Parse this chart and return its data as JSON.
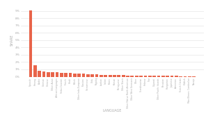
{
  "title": "",
  "xlabel": "LANGUAGE",
  "ylabel": "SHARE",
  "bar_color": "#e8644a",
  "background_color": "#ffffff",
  "grid_color": "#e0e0e0",
  "categories": [
    "Spanish",
    "Hmong",
    "Arabic",
    "German",
    "Chinese",
    "Other Asian",
    "African Languages",
    "Serbo-Croatian",
    "French",
    "Hindi",
    "Polish",
    "Other Indo-European",
    "Russian",
    "Vietnamese",
    "Urdu",
    "Tagalog",
    "Laotian",
    "Italian",
    "Karen",
    "Korean",
    "Portuguese",
    "Other Slavic",
    "Other Native North American",
    "Other West Germanic",
    "Other",
    "Scandinavian",
    "Hebrew",
    "Thai",
    "Gujarati",
    "Other Pacific Islands",
    "Peruvian",
    "Hungarian",
    "Japanese",
    "Armenian",
    "French Creole",
    "Yiddish",
    "Mon-Khmer, Cambodian",
    "Navajo"
  ],
  "values": [
    9.1,
    1.55,
    0.85,
    0.7,
    0.65,
    0.62,
    0.6,
    0.55,
    0.52,
    0.48,
    0.46,
    0.43,
    0.38,
    0.36,
    0.33,
    0.31,
    0.28,
    0.27,
    0.24,
    0.22,
    0.21,
    0.19,
    0.18,
    0.17,
    0.16,
    0.155,
    0.15,
    0.14,
    0.135,
    0.13,
    0.12,
    0.115,
    0.11,
    0.1,
    0.09,
    0.085,
    0.08,
    0.07
  ],
  "ylim": [
    0,
    10
  ],
  "ytick_values": [
    0,
    1,
    2,
    3,
    4,
    5,
    6,
    7,
    8,
    9
  ],
  "ytick_labels": [
    "0%",
    "1%",
    "2%",
    "3%",
    "4%",
    "5%",
    "6%",
    "7%",
    "8%",
    "9%"
  ]
}
